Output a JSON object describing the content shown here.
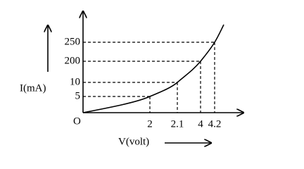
{
  "origin": "O",
  "y_axis_label": "I(mA)",
  "x_axis_label": "V(volt)",
  "y_tick_labels": [
    "5",
    "10",
    "200",
    "250"
  ],
  "x_tick_labels": [
    "2",
    "2.1",
    "4",
    "4.2"
  ]
}
